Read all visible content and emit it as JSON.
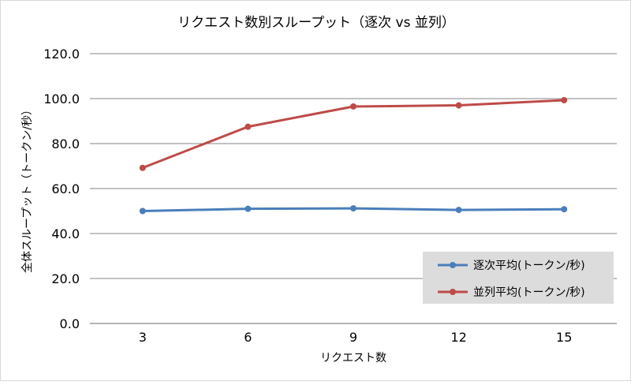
{
  "chart_data": {
    "type": "line",
    "title": "リクエスト数別スループット（逐次 vs 並列）",
    "xlabel": "リクエスト数",
    "ylabel": "全体スループット（トークン/秒）",
    "categories": [
      "3",
      "6",
      "9",
      "12",
      "15"
    ],
    "ylim": [
      0,
      120
    ],
    "ytick_labels": [
      "0.0",
      "20.0",
      "40.0",
      "60.0",
      "80.0",
      "100.0",
      "120.0"
    ],
    "grid": true,
    "legend_position": "bottom-right",
    "series": [
      {
        "name": "逐次平均(トークン/秒)",
        "values": [
          50.0,
          51.0,
          51.2,
          50.5,
          50.8
        ],
        "color": "#4a7ebb"
      },
      {
        "name": "並列平均(トークン/秒)",
        "values": [
          69.2,
          87.5,
          96.5,
          97.0,
          99.3
        ],
        "color": "#be4b48"
      }
    ]
  }
}
